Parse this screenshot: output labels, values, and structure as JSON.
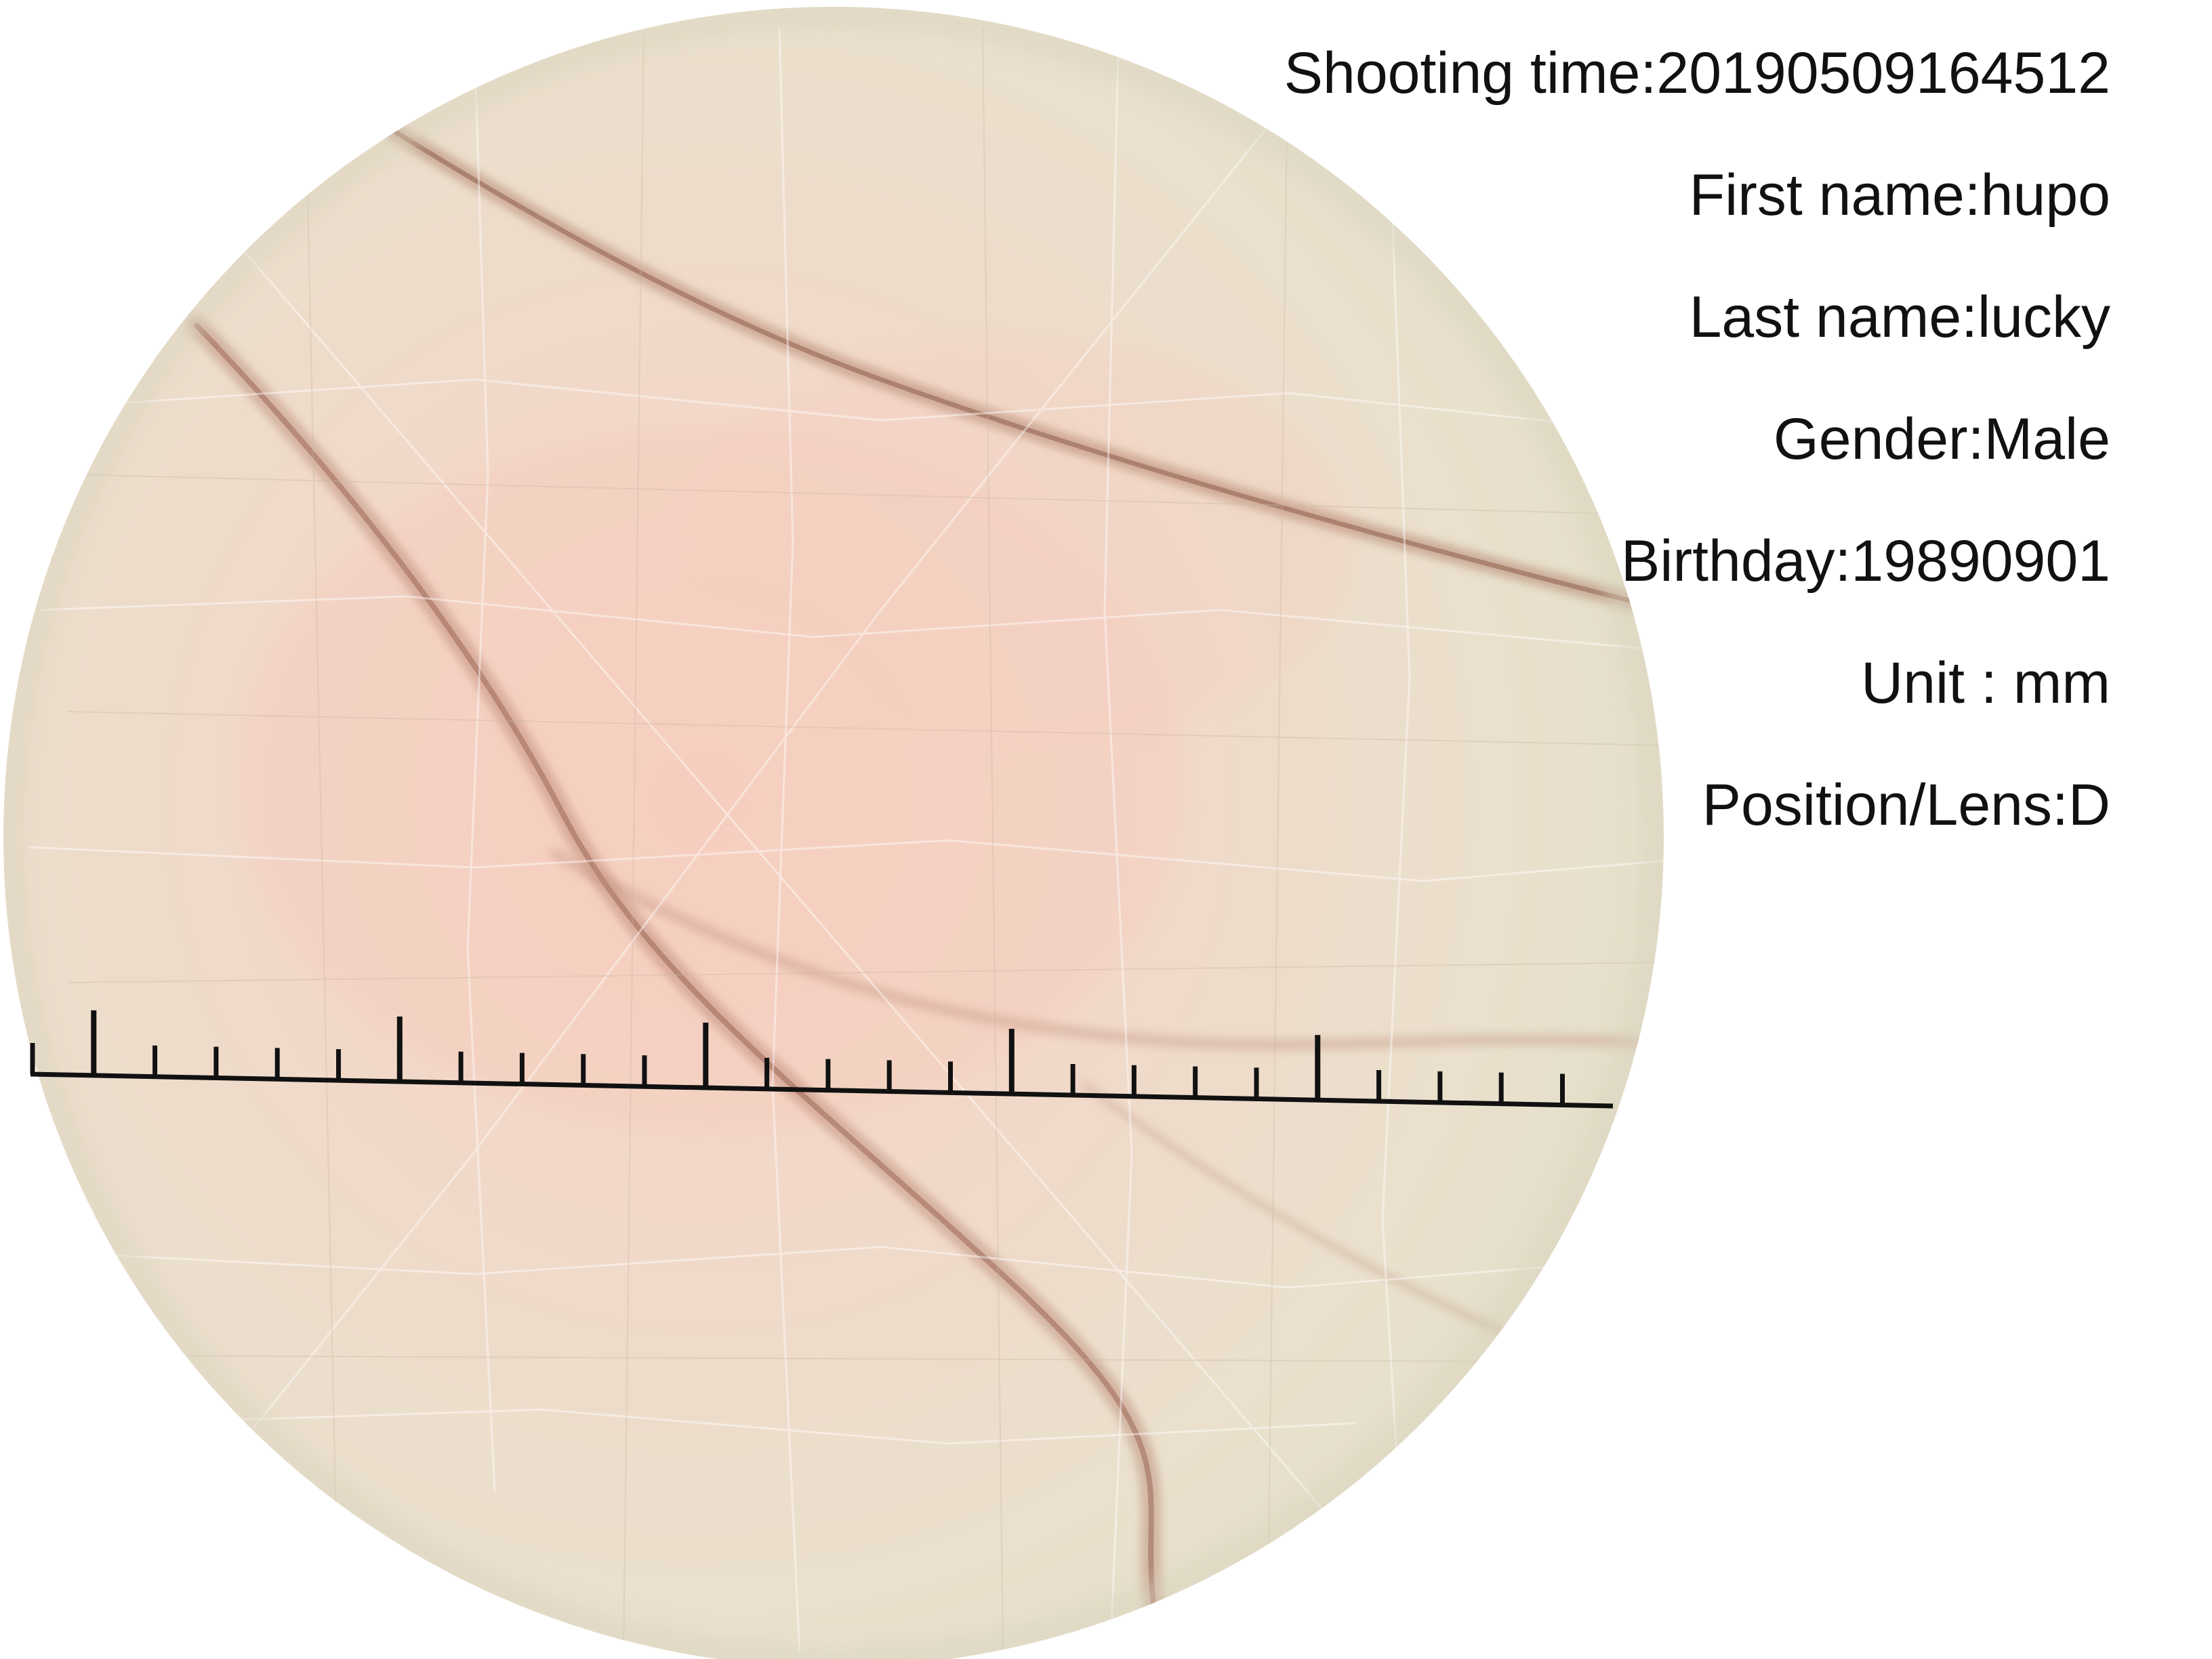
{
  "image": {
    "subject": "skin-microscope-view",
    "colors": {
      "background": "#ffffff",
      "skin_center": "#f4d3c4",
      "skin_mid": "#ecdccb",
      "skin_edge": "#e6e0cc",
      "crease": "#a3705c",
      "ruler": "#111111",
      "text": "#111111"
    }
  },
  "scale_bar": {
    "minor_ticks_per_major": 5,
    "major_tick_count": 6
  },
  "info": {
    "shooting_time": "Shooting time:20190509164512",
    "first_name": "First name:hupo",
    "last_name": "Last name:lucky",
    "gender": "Gender:Male",
    "birthday": "Birthday:19890901",
    "unit": "Unit : mm",
    "position_lens": "Position/Lens:D"
  }
}
